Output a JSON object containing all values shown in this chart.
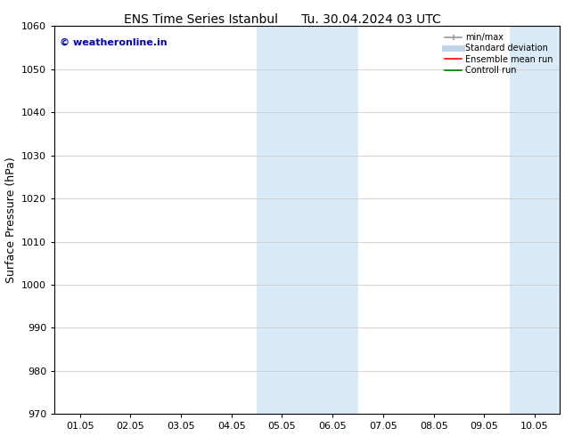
{
  "title_left": "ENS Time Series Istanbul",
  "title_right": "Tu. 30.04.2024 03 UTC",
  "ylabel": "Surface Pressure (hPa)",
  "ylim": [
    970,
    1060
  ],
  "yticks": [
    970,
    980,
    990,
    1000,
    1010,
    1020,
    1030,
    1040,
    1050,
    1060
  ],
  "x_labels": [
    "01.05",
    "02.05",
    "03.05",
    "04.05",
    "05.05",
    "06.05",
    "07.05",
    "08.05",
    "09.05",
    "10.05"
  ],
  "x_positions": [
    0,
    1,
    2,
    3,
    4,
    5,
    6,
    7,
    8,
    9
  ],
  "xlim": [
    -0.5,
    9.5
  ],
  "shaded_regions": [
    {
      "x_start": 3.5,
      "x_end": 5.5,
      "color": "#daeaf7"
    },
    {
      "x_start": 8.5,
      "x_end": 9.5,
      "color": "#daeaf7"
    }
  ],
  "watermark_text": "© weatheronline.in",
  "watermark_color": "#0000bb",
  "background_color": "#ffffff",
  "grid_color": "#cccccc",
  "spine_color": "#000000",
  "tick_color": "#000000",
  "title_fontsize": 10,
  "label_fontsize": 9,
  "tick_fontsize": 8,
  "legend_items": [
    {
      "label": "min/max",
      "color": "#999999",
      "lw": 1.2
    },
    {
      "label": "Standard deviation",
      "color": "#c0d4e8",
      "lw": 5
    },
    {
      "label": "Ensemble mean run",
      "color": "#ff0000",
      "lw": 1.2
    },
    {
      "label": "Controll run",
      "color": "#007700",
      "lw": 1.2
    }
  ]
}
